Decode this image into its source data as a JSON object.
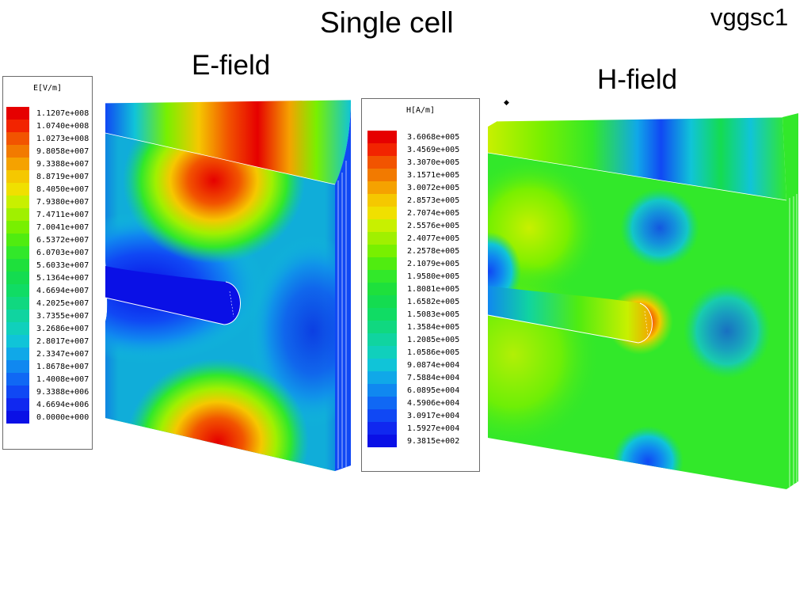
{
  "title": "Single cell",
  "code_tag": "vggsc1",
  "panels": {
    "efield": {
      "title": "E-field"
    },
    "hfield": {
      "title": "H-field"
    }
  },
  "e_legend": {
    "header": "E[V/m]",
    "values": [
      "1.1207e+008",
      "1.0740e+008",
      "1.0273e+008",
      "9.8058e+007",
      "9.3388e+007",
      "8.8719e+007",
      "8.4050e+007",
      "7.9380e+007",
      "7.4711e+007",
      "7.0041e+007",
      "6.5372e+007",
      "6.0703e+007",
      "5.6033e+007",
      "5.1364e+007",
      "4.6694e+007",
      "4.2025e+007",
      "3.7355e+007",
      "3.2686e+007",
      "2.8017e+007",
      "2.3347e+007",
      "1.8678e+007",
      "1.4008e+007",
      "9.3388e+006",
      "4.6694e+006",
      "0.0000e+000"
    ]
  },
  "h_legend": {
    "header": "H[A/m]",
    "values": [
      "3.6068e+005",
      "3.4569e+005",
      "3.3070e+005",
      "3.1571e+005",
      "3.0072e+005",
      "2.8573e+005",
      "2.7074e+005",
      "2.5576e+005",
      "2.4077e+005",
      "2.2578e+005",
      "2.1079e+005",
      "1.9580e+005",
      "1.8081e+005",
      "1.6582e+005",
      "1.5083e+005",
      "1.3584e+005",
      "1.2085e+005",
      "1.0586e+005",
      "9.0874e+004",
      "7.5884e+004",
      "6.0895e+004",
      "4.5906e+004",
      "3.0917e+004",
      "1.5927e+004",
      "9.3815e+002"
    ]
  },
  "colors": {
    "scale": [
      "#e60000",
      "#f22400",
      "#f25400",
      "#f27a00",
      "#f5a200",
      "#f5c800",
      "#f0e000",
      "#c8f000",
      "#a0f000",
      "#78f000",
      "#50ec10",
      "#32e82a",
      "#1ee03c",
      "#14dc50",
      "#10dc64",
      "#10d880",
      "#10d4a0",
      "#10d0bc",
      "#10c4d8",
      "#10a8e8",
      "#1088f0",
      "#1068f4",
      "#1048f4",
      "#1028f0",
      "#0a10e6"
    ]
  }
}
